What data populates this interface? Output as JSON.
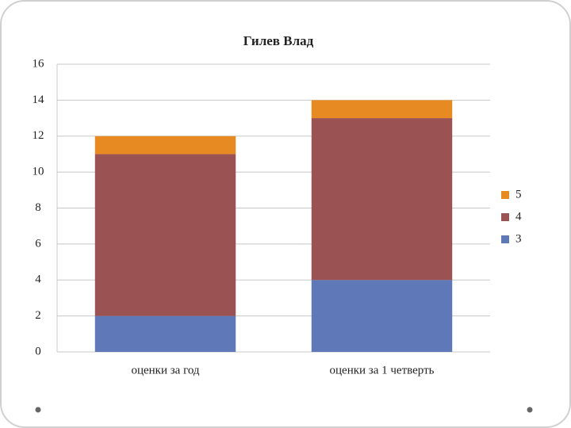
{
  "chart_data": {
    "type": "stacked-bar",
    "title": "Гилев Влад",
    "categories": [
      "оценки за год",
      "оценки за 1 четверть"
    ],
    "series": [
      {
        "name": "3",
        "color": "#5f78b8",
        "values": [
          2,
          4
        ]
      },
      {
        "name": "4",
        "color": "#9b5252",
        "values": [
          9,
          9
        ]
      },
      {
        "name": "5",
        "color": "#e88a22",
        "values": [
          1,
          1
        ]
      }
    ],
    "ylim": [
      0,
      16
    ],
    "yticks": [
      0,
      2,
      4,
      6,
      8,
      10,
      12,
      14,
      16
    ],
    "grid": true,
    "legend": "right"
  }
}
